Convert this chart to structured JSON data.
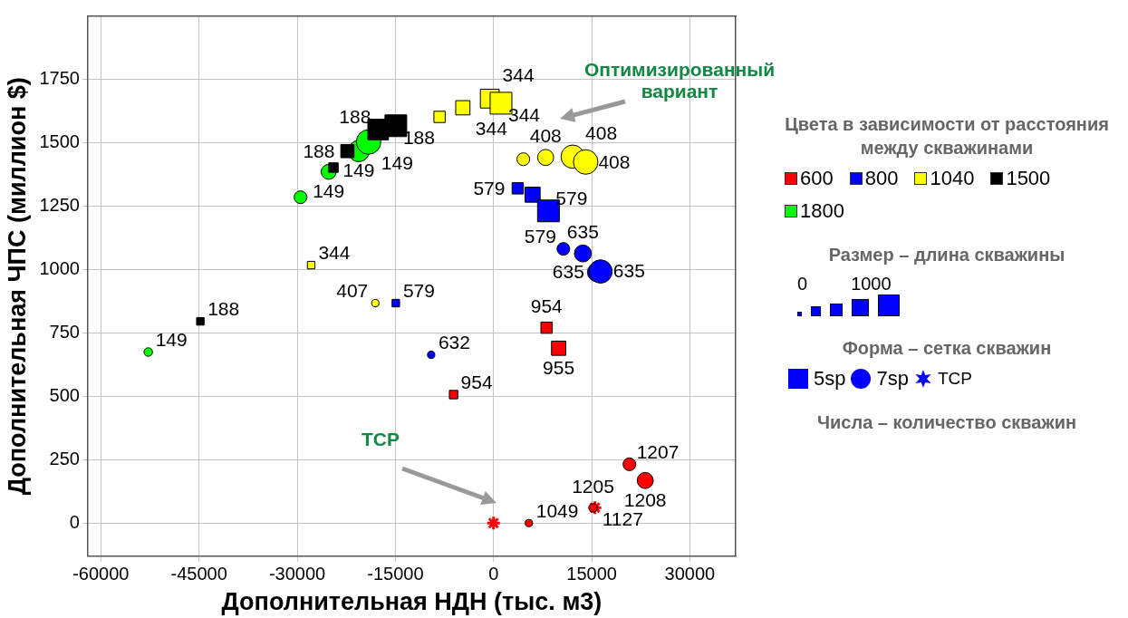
{
  "chart_data": {
    "type": "bubble",
    "xlabel": "Дополнительная НДН (тыс. м3)",
    "ylabel": "Дополнительная ЧПС (миллион $)",
    "legend_title": "Цвета в зависимости от расстояния между скважинами",
    "xlim": [
      -62000,
      37000
    ],
    "ylim": [
      -130,
      2000
    ],
    "xticks": [
      -60000,
      -45000,
      -30000,
      -15000,
      0,
      15000,
      30000
    ],
    "yticks": [
      0,
      250,
      500,
      750,
      1000,
      1250,
      1500,
      1750
    ],
    "grid": true,
    "legend": "right",
    "series": [
      {
        "name": "600",
        "color": "#ff0000",
        "marker": "square",
        "x": [
          -6110,
          8100,
          9950
        ],
        "values": [
          507,
          771,
          690
        ],
        "sizes": [
          0.15,
          0.27,
          0.43
        ]
      },
      {
        "color": "#ff0000",
        "marker": "circle",
        "x": [
          5400,
          15200,
          20760,
          23180
        ],
        "values": [
          0,
          60,
          232,
          168
        ],
        "sizes": [
          0.09,
          0.12,
          0.27,
          0.43
        ]
      },
      {
        "type": "scatter",
        "color": "#ff0000",
        "marker": "cross",
        "x": [
          0,
          15500
        ],
        "values": [
          0,
          61
        ]
      },
      {
        "name": "800",
        "color": "#0000ff",
        "marker": "square",
        "x": [
          -14930,
          3700,
          5970,
          8390
        ],
        "values": [
          868,
          1321,
          1296,
          1232
        ],
        "sizes": [
          0.12,
          0.27,
          0.48,
          1
        ]
      },
      {
        "color": "#0000ff",
        "marker": "circle",
        "x": [
          -9530,
          10670,
          13650,
          15800,
          16350
        ],
        "values": [
          664,
          1082,
          1064,
          990,
          993
        ],
        "sizes": [
          0.09,
          0.27,
          0.48,
          0.6,
          0.9
        ]
      },
      {
        "name": "1040",
        "color": "#ffff00",
        "marker": "square",
        "x": [
          -27870,
          -8250,
          -4690,
          -570,
          1140
        ],
        "values": [
          1018,
          1603,
          1639,
          1675,
          1657
        ],
        "sizes": [
          0.12,
          0.27,
          0.43,
          0.75,
          1
        ]
      },
      {
        "color": "#ffff00",
        "marker": "circle",
        "x": [
          -18060,
          4550,
          7960,
          12090,
          14080
        ],
        "values": [
          868,
          1436,
          1443,
          1446,
          1425
        ],
        "sizes": [
          0.09,
          0.27,
          0.43,
          0.9,
          1
        ]
      },
      {
        "name": "1500",
        "color": "#000000",
        "marker": "square",
        "x": [
          -44800,
          -24460,
          -22330,
          -17630,
          -14930
        ],
        "values": [
          796,
          1403,
          1468,
          1553,
          1568
        ],
        "sizes": [
          0.12,
          0.19,
          0.37,
          0.9,
          1
        ]
      },
      {
        "name": "1800",
        "color": "#00ff00",
        "marker": "circle",
        "x": [
          -52760,
          -29500,
          -25200,
          -20600,
          -19100
        ],
        "values": [
          675,
          1286,
          1386,
          1468,
          1504
        ],
        "sizes": [
          0.12,
          0.27,
          0.37,
          0.75,
          1
        ]
      }
    ],
    "annotations": [
      {
        "text": "954",
        "x": -6110,
        "y": 507
      },
      {
        "text": "954",
        "x": 8100,
        "y": 771
      },
      {
        "text": "955",
        "x": 9950,
        "y": 690
      },
      {
        "text": "1049",
        "x": 5400,
        "y": 0
      },
      {
        "text": "1205",
        "x": 15200,
        "y": 60
      },
      {
        "text": "1207",
        "x": 20760,
        "y": 232
      },
      {
        "text": "1208",
        "x": 23180,
        "y": 168
      },
      {
        "text": "1127",
        "x": 15500,
        "y": 61
      },
      {
        "text": "579",
        "x": -14930,
        "y": 868
      },
      {
        "text": "579",
        "x": 3700,
        "y": 1321
      },
      {
        "text": "579",
        "x": 8390,
        "y": 1232
      },
      {
        "text": "632",
        "x": -9530,
        "y": 664
      },
      {
        "text": "579",
        "x": 10670,
        "y": 1082
      },
      {
        "text": "635",
        "x": 13650,
        "y": 1064
      },
      {
        "text": "635",
        "x": 15800,
        "y": 990
      },
      {
        "text": "635",
        "x": 16350,
        "y": 993
      },
      {
        "text": "344",
        "x": -27870,
        "y": 1018
      },
      {
        "text": "344",
        "x": -4690,
        "y": 1639
      },
      {
        "text": "344",
        "x": -570,
        "y": 1675
      },
      {
        "text": "344",
        "x": 1140,
        "y": 1657
      },
      {
        "text": "407",
        "x": -18060,
        "y": 868
      },
      {
        "text": "408",
        "x": 7960,
        "y": 1443
      },
      {
        "text": "408",
        "x": 12090,
        "y": 1446
      },
      {
        "text": "408",
        "x": 14080,
        "y": 1425
      },
      {
        "text": "188",
        "x": -44800,
        "y": 796
      },
      {
        "text": "188",
        "x": -22330,
        "y": 1468
      },
      {
        "text": "188",
        "x": -17630,
        "y": 1553
      },
      {
        "text": "188",
        "x": -14930,
        "y": 1568
      },
      {
        "text": "149",
        "x": -52760,
        "y": 675
      },
      {
        "text": "149",
        "x": -25200,
        "y": 1386
      },
      {
        "text": "149",
        "x": -20600,
        "y": 1468
      },
      {
        "text": "149",
        "x": -19100,
        "y": 1504
      },
      "Оптимизированный вариант",
      "TCP",
      "Размер – длина скважины",
      "0",
      "1000",
      "Форма – сетка скважин",
      "5sp",
      "7sp",
      "TCP",
      "Числа – количество скважин"
    ]
  }
}
